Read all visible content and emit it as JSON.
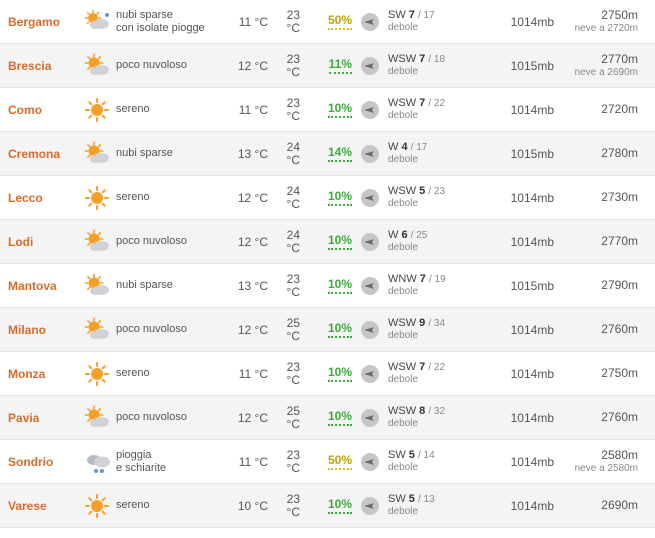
{
  "rows": [
    {
      "city": "Bergamo",
      "weather_icon": "sun_cloud_rain",
      "desc": "nubi sparse\ncon isolate piogge",
      "tmin": "11 °C",
      "tmax": "23\n°C",
      "hum": "50%",
      "hum_class": "yellow",
      "wind_dir": "SW",
      "wind_spd": "7",
      "wind_gust": "17",
      "wind_desc": "debole",
      "press": "1014mb",
      "alt": "2750m",
      "snow": "neve a 2720m"
    },
    {
      "city": "Brescia",
      "weather_icon": "sun_cloud",
      "desc": "poco nuvoloso",
      "tmin": "12 °C",
      "tmax": "23\n°C",
      "hum": "11%",
      "hum_class": "green",
      "wind_dir": "WSW",
      "wind_spd": "7",
      "wind_gust": "18",
      "wind_desc": "debole",
      "press": "1015mb",
      "alt": "2770m",
      "snow": "neve a 2690m"
    },
    {
      "city": "Como",
      "weather_icon": "sun",
      "desc": "sereno",
      "tmin": "11 °C",
      "tmax": "23\n°C",
      "hum": "10%",
      "hum_class": "green",
      "wind_dir": "WSW",
      "wind_spd": "7",
      "wind_gust": "22",
      "wind_desc": "debole",
      "press": "1014mb",
      "alt": "2720m",
      "snow": ""
    },
    {
      "city": "Cremona",
      "weather_icon": "sun_cloud",
      "desc": "nubi sparse",
      "tmin": "13 °C",
      "tmax": "24\n°C",
      "hum": "14%",
      "hum_class": "green",
      "wind_dir": "W",
      "wind_spd": "4",
      "wind_gust": "17",
      "wind_desc": "debole",
      "press": "1015mb",
      "alt": "2780m",
      "snow": ""
    },
    {
      "city": "Lecco",
      "weather_icon": "sun",
      "desc": "sereno",
      "tmin": "12 °C",
      "tmax": "24\n°C",
      "hum": "10%",
      "hum_class": "green",
      "wind_dir": "WSW",
      "wind_spd": "5",
      "wind_gust": "23",
      "wind_desc": "debole",
      "press": "1014mb",
      "alt": "2730m",
      "snow": ""
    },
    {
      "city": "Lodi",
      "weather_icon": "sun_cloud",
      "desc": "poco nuvoloso",
      "tmin": "12 °C",
      "tmax": "24\n°C",
      "hum": "10%",
      "hum_class": "green",
      "wind_dir": "W",
      "wind_spd": "6",
      "wind_gust": "25",
      "wind_desc": "debole",
      "press": "1014mb",
      "alt": "2770m",
      "snow": ""
    },
    {
      "city": "Mantova",
      "weather_icon": "sun_cloud",
      "desc": "nubi sparse",
      "tmin": "13 °C",
      "tmax": "23\n°C",
      "hum": "10%",
      "hum_class": "green",
      "wind_dir": "WNW",
      "wind_spd": "7",
      "wind_gust": "19",
      "wind_desc": "debole",
      "press": "1015mb",
      "alt": "2790m",
      "snow": ""
    },
    {
      "city": "Milano",
      "weather_icon": "sun_cloud",
      "desc": "poco nuvoloso",
      "tmin": "12 °C",
      "tmax": "25\n°C",
      "hum": "10%",
      "hum_class": "green",
      "wind_dir": "WSW",
      "wind_spd": "9",
      "wind_gust": "34",
      "wind_desc": "debole",
      "press": "1014mb",
      "alt": "2760m",
      "snow": ""
    },
    {
      "city": "Monza",
      "weather_icon": "sun",
      "desc": "sereno",
      "tmin": "11 °C",
      "tmax": "23\n°C",
      "hum": "10%",
      "hum_class": "green",
      "wind_dir": "WSW",
      "wind_spd": "7",
      "wind_gust": "22",
      "wind_desc": "debole",
      "press": "1014mb",
      "alt": "2750m",
      "snow": ""
    },
    {
      "city": "Pavia",
      "weather_icon": "sun_cloud",
      "desc": "poco nuvoloso",
      "tmin": "12 °C",
      "tmax": "25\n°C",
      "hum": "10%",
      "hum_class": "green",
      "wind_dir": "WSW",
      "wind_spd": "8",
      "wind_gust": "32",
      "wind_desc": "debole",
      "press": "1014mb",
      "alt": "2760m",
      "snow": ""
    },
    {
      "city": "Sondrio",
      "weather_icon": "cloud_rain",
      "desc": "pioggia\ne schiarite",
      "tmin": "11 °C",
      "tmax": "23\n°C",
      "hum": "50%",
      "hum_class": "yellow",
      "wind_dir": "SW",
      "wind_spd": "5",
      "wind_gust": "14",
      "wind_desc": "debole",
      "press": "1014mb",
      "alt": "2580m",
      "snow": "neve a 2580m"
    },
    {
      "city": "Varese",
      "weather_icon": "sun",
      "desc": "sereno",
      "tmin": "10 °C",
      "tmax": "23\n°C",
      "hum": "10%",
      "hum_class": "green",
      "wind_dir": "SW",
      "wind_spd": "5",
      "wind_gust": "13",
      "wind_desc": "debole",
      "press": "1014mb",
      "alt": "2690m",
      "snow": ""
    }
  ],
  "icon_colors": {
    "sun": "#f4a026",
    "ray": "#f4a026",
    "cloud": "#d0d2d6",
    "cloud_dark": "#b7bbc2",
    "rain": "#5a98d6",
    "wind_disc": "#c6c6c6",
    "wind_arrow": "#6d6d6d"
  }
}
